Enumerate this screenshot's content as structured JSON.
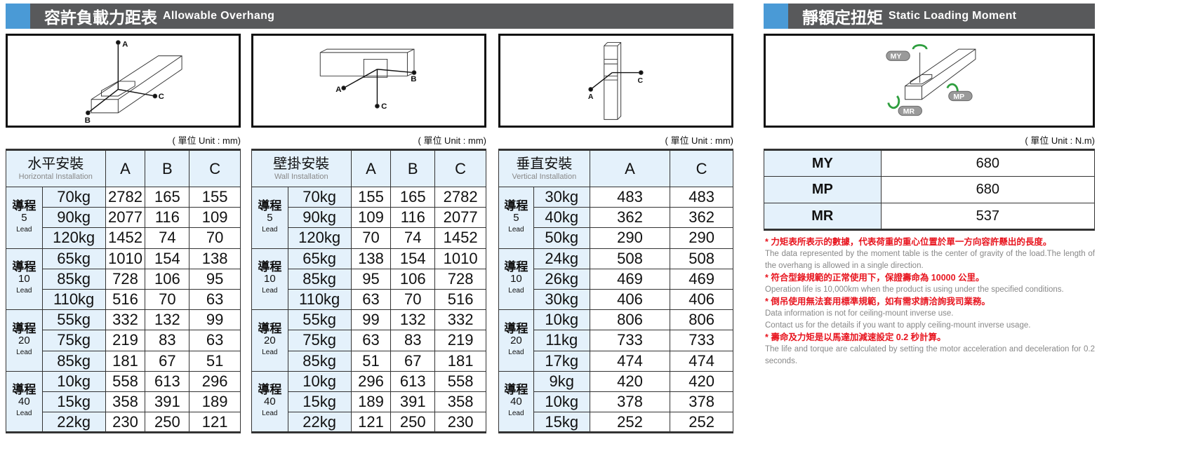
{
  "overhang": {
    "title_zh": "容許負載力距表",
    "title_en": "Allowable Overhang",
    "unit": "( 單位 Unit : mm)",
    "lead_label": "導程",
    "lead_en": "Lead",
    "diagram_labels": {
      "a": "A",
      "b": "B",
      "c": "C"
    },
    "tables": [
      {
        "name_zh": "水平安裝",
        "name_en": "Horizontal Installation",
        "columns": [
          "A",
          "B",
          "C"
        ],
        "groups": [
          {
            "lead": "5",
            "rows": [
              [
                "70kg",
                "2782",
                "165",
                "155"
              ],
              [
                "90kg",
                "2077",
                "116",
                "109"
              ],
              [
                "120kg",
                "1452",
                "74",
                "70"
              ]
            ]
          },
          {
            "lead": "10",
            "rows": [
              [
                "65kg",
                "1010",
                "154",
                "138"
              ],
              [
                "85kg",
                "728",
                "106",
                "95"
              ],
              [
                "110kg",
                "516",
                "70",
                "63"
              ]
            ]
          },
          {
            "lead": "20",
            "rows": [
              [
                "55kg",
                "332",
                "132",
                "99"
              ],
              [
                "75kg",
                "219",
                "83",
                "63"
              ],
              [
                "85kg",
                "181",
                "67",
                "51"
              ]
            ]
          },
          {
            "lead": "40",
            "rows": [
              [
                "10kg",
                "558",
                "613",
                "296"
              ],
              [
                "15kg",
                "358",
                "391",
                "189"
              ],
              [
                "22kg",
                "230",
                "250",
                "121"
              ]
            ]
          }
        ]
      },
      {
        "name_zh": "壁掛安裝",
        "name_en": "Wall Installation",
        "columns": [
          "A",
          "B",
          "C"
        ],
        "groups": [
          {
            "lead": "5",
            "rows": [
              [
                "70kg",
                "155",
                "165",
                "2782"
              ],
              [
                "90kg",
                "109",
                "116",
                "2077"
              ],
              [
                "120kg",
                "70",
                "74",
                "1452"
              ]
            ]
          },
          {
            "lead": "10",
            "rows": [
              [
                "65kg",
                "138",
                "154",
                "1010"
              ],
              [
                "85kg",
                "95",
                "106",
                "728"
              ],
              [
                "110kg",
                "63",
                "70",
                "516"
              ]
            ]
          },
          {
            "lead": "20",
            "rows": [
              [
                "55kg",
                "99",
                "132",
                "332"
              ],
              [
                "75kg",
                "63",
                "83",
                "219"
              ],
              [
                "85kg",
                "51",
                "67",
                "181"
              ]
            ]
          },
          {
            "lead": "40",
            "rows": [
              [
                "10kg",
                "296",
                "613",
                "558"
              ],
              [
                "15kg",
                "189",
                "391",
                "358"
              ],
              [
                "22kg",
                "121",
                "250",
                "230"
              ]
            ]
          }
        ]
      },
      {
        "name_zh": "垂直安裝",
        "name_en": "Vertical Installation",
        "columns": [
          "A",
          "C"
        ],
        "groups": [
          {
            "lead": "5",
            "rows": [
              [
                "30kg",
                "483",
                "483"
              ],
              [
                "40kg",
                "362",
                "362"
              ],
              [
                "50kg",
                "290",
                "290"
              ]
            ]
          },
          {
            "lead": "10",
            "rows": [
              [
                "24kg",
                "508",
                "508"
              ],
              [
                "26kg",
                "469",
                "469"
              ],
              [
                "30kg",
                "406",
                "406"
              ]
            ]
          },
          {
            "lead": "20",
            "rows": [
              [
                "10kg",
                "806",
                "806"
              ],
              [
                "11kg",
                "733",
                "733"
              ],
              [
                "17kg",
                "474",
                "474"
              ]
            ]
          },
          {
            "lead": "40",
            "rows": [
              [
                "9kg",
                "420",
                "420"
              ],
              [
                "10kg",
                "378",
                "378"
              ],
              [
                "15kg",
                "252",
                "252"
              ]
            ]
          }
        ]
      }
    ]
  },
  "moment": {
    "title_zh": "靜額定扭矩",
    "title_en": "Static Loading Moment",
    "unit": "( 單位 Unit : N.m)",
    "diagram_labels": {
      "my": "MY",
      "mp": "MP",
      "mr": "MR"
    },
    "rows": [
      [
        "MY",
        "680"
      ],
      [
        "MP",
        "680"
      ],
      [
        "MR",
        "537"
      ]
    ],
    "arrow_color": "#2e9e3e"
  },
  "notes": [
    {
      "zh": "* 力矩表所表示的數據，代表荷重的重心位置於單一方向容許懸出的長度。",
      "en": [
        "The data represented by the moment table is the center of gravity of the load.The length of the overhang is allowed in a single direction."
      ]
    },
    {
      "zh": "* 符合型錄規範的正常使用下，保證壽命為 10000 公里。",
      "en": [
        "Operation life is 10,000km when the product is using under the specified conditions."
      ]
    },
    {
      "zh": "* 倒吊使用無法套用標準規範，如有需求請洽詢我司業務。",
      "en": [
        "Data information is not for ceiling-mount inverse use.",
        "Contact us for the details if you want to apply ceiling-mount inverse usage."
      ]
    },
    {
      "zh": "* 壽命及力矩是以馬達加減速設定 0.2 秒計算。",
      "en": [
        "The life and torque are calculated by setting the motor acceleration and deceleration for 0.2 seconds."
      ]
    }
  ],
  "colors": {
    "header_bg": "#58595b",
    "accent_blue": "#4a9ad6",
    "cell_blue": "#e4f1fb",
    "note_red": "#e8141e"
  }
}
